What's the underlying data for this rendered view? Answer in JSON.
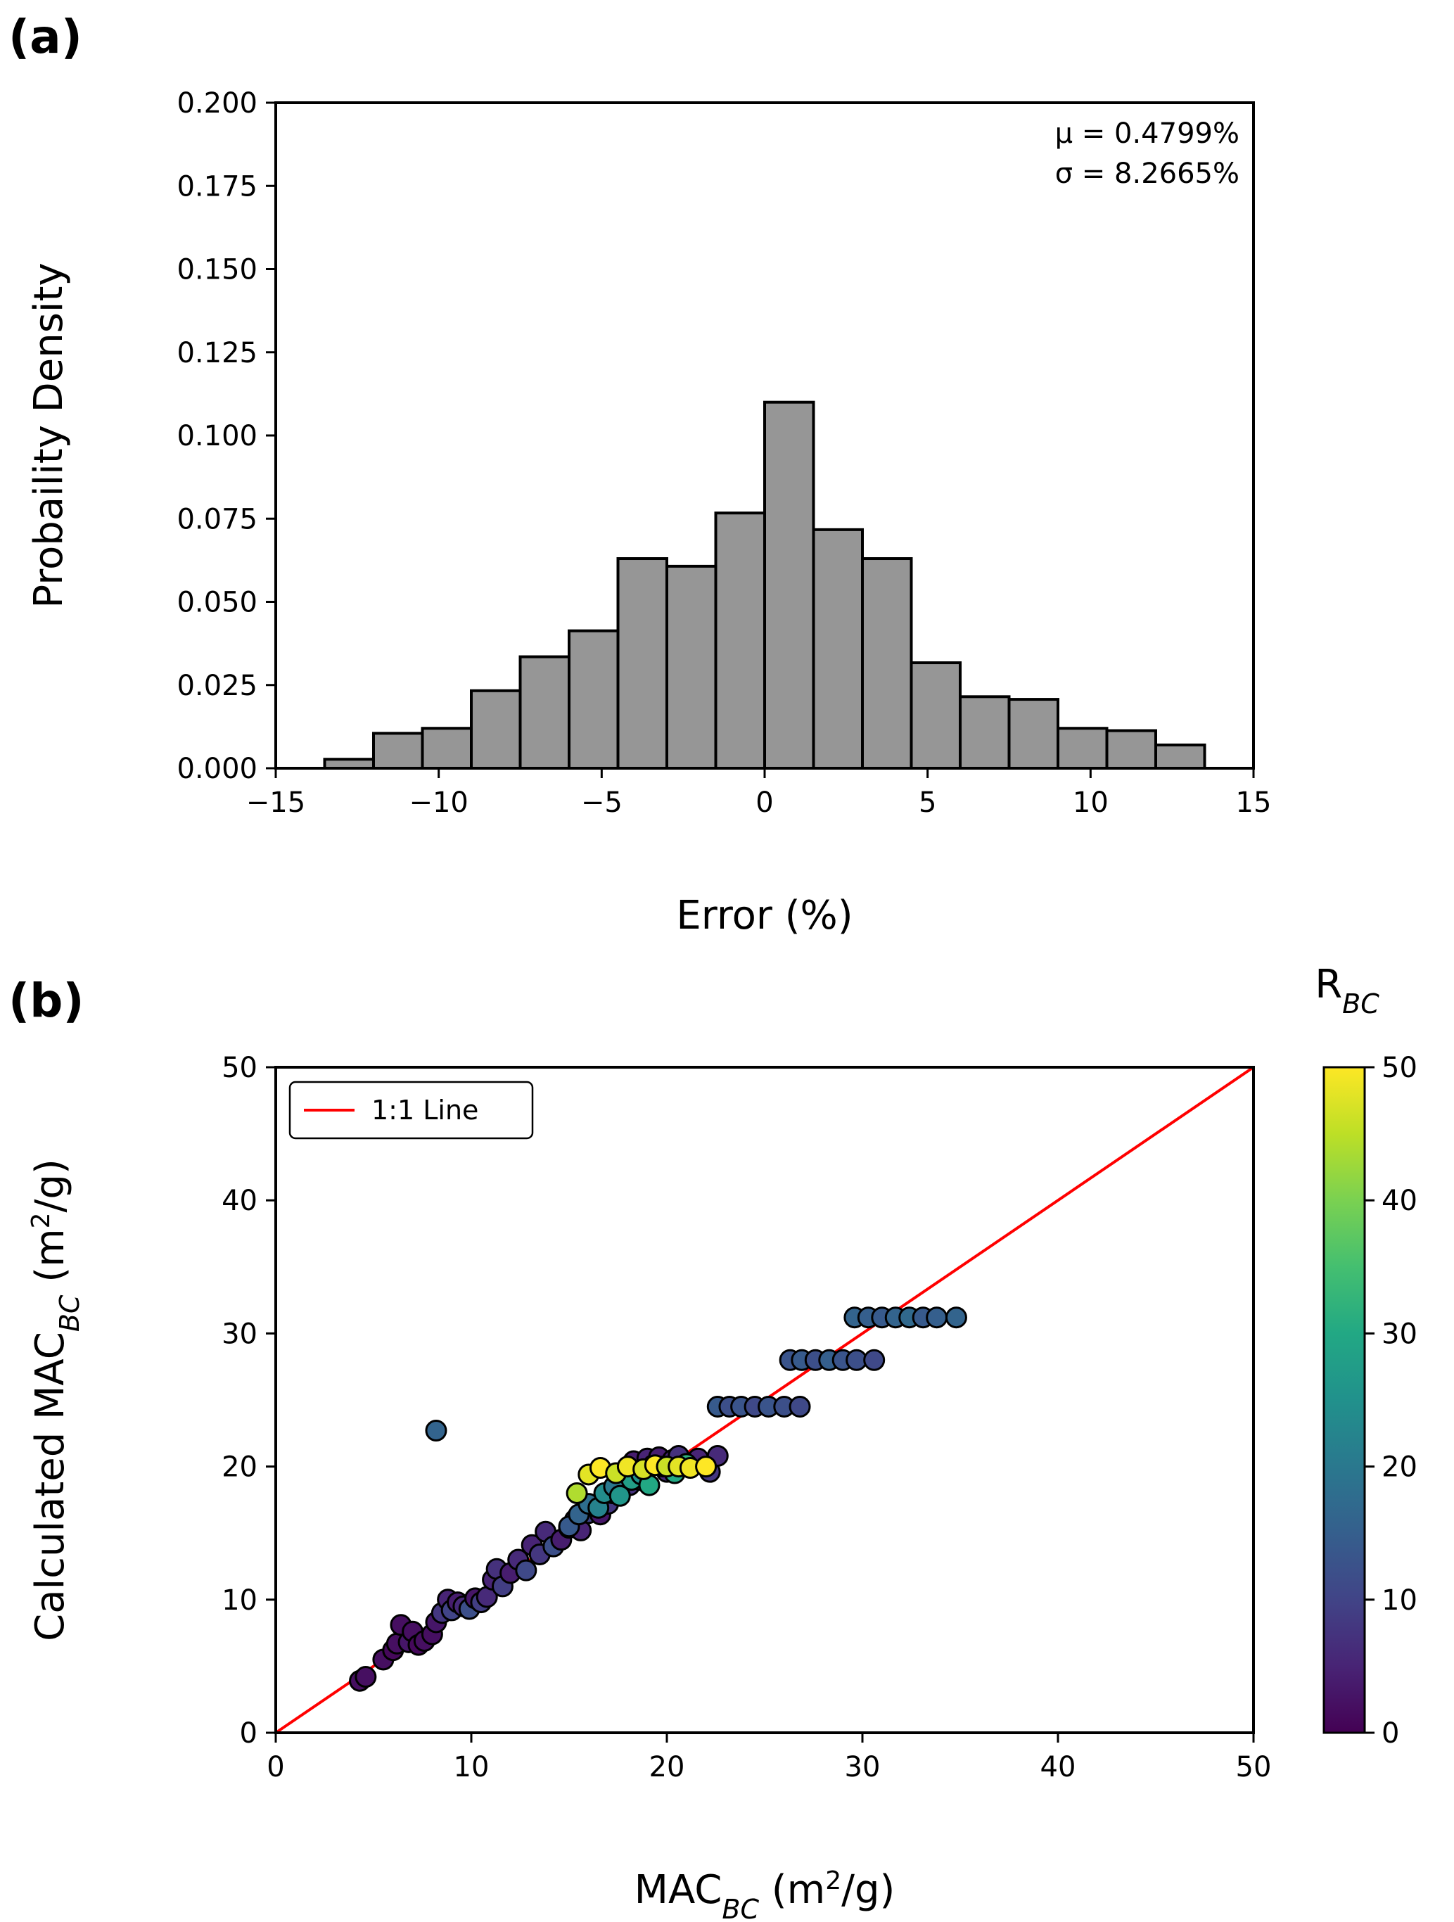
{
  "panels": {
    "a": {
      "tag": "(a)",
      "stats": {
        "mu": "μ = 0.4799%",
        "sigma": "σ = 8.2665%"
      }
    },
    "b": {
      "tag": "(b)",
      "legend_label": "1:1 Line",
      "colorbar_label": "R_BC"
    }
  },
  "chart_data": [
    {
      "type": "bar",
      "panel": "(a)",
      "xlabel": "Error (%)",
      "ylabel": "Probaility Density",
      "xlim": [
        -15,
        15
      ],
      "ylim": [
        0,
        0.2
      ],
      "x_ticks": [
        -15,
        -10,
        -5,
        0,
        5,
        10,
        15
      ],
      "x_tick_labels": [
        "−15",
        "−10",
        "−5",
        "0",
        "5",
        "10",
        "15"
      ],
      "y_ticks": [
        0,
        0.025,
        0.05,
        0.075,
        0.1,
        0.125,
        0.15,
        0.175,
        0.2
      ],
      "y_tick_labels": [
        "0.000",
        "0.025",
        "0.050",
        "0.075",
        "0.100",
        "0.125",
        "0.150",
        "0.175",
        "0.200"
      ],
      "bin_edges": [
        -13.5,
        -12,
        -10.5,
        -9,
        -7.5,
        -6,
        -4.5,
        -3,
        -1.5,
        0,
        1.5,
        3,
        4.5,
        6,
        7.5,
        9,
        10.5,
        12,
        13.5
      ],
      "values": [
        0.0027,
        0.0105,
        0.012,
        0.0233,
        0.0335,
        0.0413,
        0.063,
        0.0607,
        0.0767,
        0.11,
        0.0717,
        0.063,
        0.0317,
        0.0215,
        0.0207,
        0.012,
        0.0113,
        0.007
      ],
      "bar_color": "#969696",
      "edge_color": "#000000",
      "mean": "0.4799%",
      "std": "8.2665%"
    },
    {
      "type": "scatter",
      "panel": "(b)",
      "xlabel": "MAC_BC (m²/g)",
      "ylabel": "Calculated MAC_BC (m²/g)",
      "xlim": [
        0,
        50
      ],
      "ylim": [
        0,
        50
      ],
      "x_ticks": [
        0,
        10,
        20,
        30,
        40,
        50
      ],
      "y_ticks": [
        0,
        10,
        20,
        30,
        40,
        50
      ],
      "colorbar": {
        "label": "R_BC",
        "range": [
          0,
          50
        ],
        "ticks": [
          0,
          10,
          20,
          30,
          40,
          50
        ],
        "colormap": "viridis"
      },
      "reference_line": {
        "label": "1:1 Line",
        "color": "#ff0000",
        "points": [
          [
            0,
            0
          ],
          [
            50,
            50
          ]
        ]
      },
      "legend_position": "upper-left",
      "series": [
        {
          "x": [
            4.3,
            4.6,
            5.5,
            6.0,
            6.2,
            6.4,
            6.8,
            7.0,
            7.3,
            7.6,
            8.0,
            8.2
          ],
          "y": [
            3.9,
            4.2,
            5.5,
            6.2,
            6.7,
            8.1,
            6.8,
            7.6,
            6.6,
            6.9,
            7.4,
            8.3
          ],
          "c": [
            2,
            2,
            2,
            1,
            2,
            2,
            3,
            2,
            1,
            2,
            2,
            3
          ]
        },
        {
          "x": [
            8.5,
            8.8,
            9.0,
            9.3,
            9.6,
            9.9,
            10.2,
            10.5,
            10.8,
            11.1,
            11.3,
            11.6,
            12.0,
            12.4,
            12.8,
            13.1,
            13.5,
            13.8,
            14.2,
            14.6,
            15.0,
            15.3,
            15.6,
            16.0,
            16.3,
            16.6,
            17.0,
            17.2,
            17.5,
            17.8,
            18.1,
            18.3,
            18.6,
            19.0,
            19.3,
            19.6,
            20.0,
            20.3,
            20.6,
            21.0,
            21.6,
            22.2,
            22.6
          ],
          "y": [
            9.0,
            10.0,
            9.2,
            9.8,
            9.5,
            9.3,
            10.1,
            9.8,
            10.2,
            11.5,
            12.3,
            11.0,
            12.0,
            13.0,
            12.2,
            14.1,
            13.4,
            15.1,
            14.0,
            14.5,
            15.4,
            16.0,
            15.2,
            16.5,
            17.1,
            16.4,
            17.2,
            18.0,
            18.3,
            19.2,
            18.6,
            20.4,
            19.0,
            20.6,
            20.1,
            20.7,
            19.6,
            20.5,
            20.8,
            20.2,
            20.6,
            19.6,
            20.8
          ],
          "c": [
            8,
            5,
            10,
            4,
            6,
            12,
            3,
            9,
            6,
            5,
            7,
            9,
            4,
            6,
            11,
            5,
            8,
            6,
            12,
            4,
            9,
            7,
            5,
            10,
            6,
            3,
            8,
            6,
            9,
            5,
            7,
            4,
            6,
            5,
            8,
            4,
            6,
            5,
            7,
            6,
            5,
            8,
            6
          ]
        },
        {
          "x": [
            15.0,
            15.5,
            16.0,
            16.5,
            16.8,
            17.3,
            17.6,
            18.2,
            18.7,
            19.1,
            19.8,
            20.4,
            21.0
          ],
          "y": [
            15.5,
            16.4,
            17.2,
            16.9,
            18.0,
            18.5,
            17.8,
            19.0,
            19.4,
            18.6,
            20.0,
            19.5,
            20.2
          ],
          "c": [
            14,
            16,
            18,
            22,
            24,
            20,
            26,
            28,
            25,
            30,
            34,
            30,
            32
          ]
        },
        {
          "x": [
            15.4,
            16.0,
            16.6,
            17.4,
            18.0,
            18.8,
            19.4,
            20.0,
            20.6,
            21.2,
            22.0
          ],
          "y": [
            18.0,
            19.4,
            19.9,
            19.5,
            20.0,
            19.8,
            20.1,
            20.0,
            20.0,
            19.9,
            20.0
          ],
          "c": [
            44,
            48,
            50,
            46,
            49,
            47,
            50,
            46,
            48,
            49,
            50
          ]
        },
        {
          "x": [
            22.6,
            23.2,
            23.8,
            24.5,
            25.2,
            26.0,
            26.8
          ],
          "y": [
            24.5,
            24.5,
            24.5,
            24.5,
            24.5,
            24.5,
            24.5
          ],
          "c": [
            14,
            12,
            13,
            11,
            13,
            12,
            11
          ]
        },
        {
          "x": [
            26.3,
            26.9,
            27.6,
            28.3,
            29.0,
            29.7,
            30.6
          ],
          "y": [
            28.0,
            28.0,
            28.0,
            28.0,
            28.0,
            28.0,
            28.0
          ],
          "c": [
            13,
            14,
            12,
            15,
            13,
            12,
            11
          ]
        },
        {
          "x": [
            29.6,
            30.3,
            31.0,
            31.7,
            32.4,
            33.1,
            33.8,
            34.8
          ],
          "y": [
            31.2,
            31.2,
            31.2,
            31.2,
            31.2,
            31.2,
            31.2,
            31.2
          ],
          "c": [
            16,
            15,
            14,
            16,
            17,
            14,
            15,
            16
          ]
        },
        {
          "x": [
            8.2
          ],
          "y": [
            22.7
          ],
          "c": [
            16
          ]
        }
      ]
    }
  ]
}
